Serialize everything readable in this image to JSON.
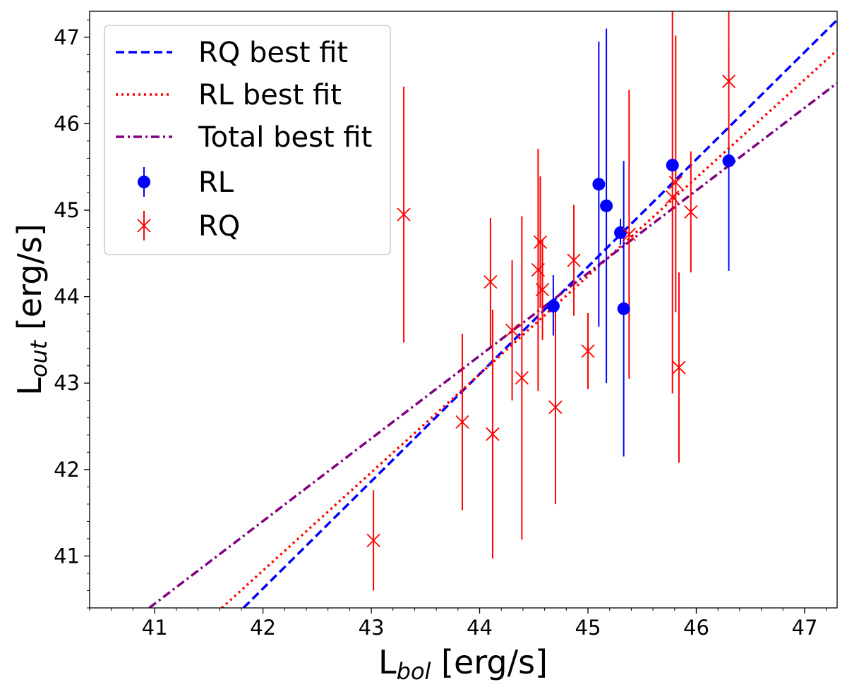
{
  "chart_data": {
    "type": "scatter",
    "xlabel": {
      "main": "L",
      "sub": "bol",
      "unit": " [erg/s]"
    },
    "ylabel": {
      "main": "L",
      "sub": "out",
      "unit": " [erg/s]"
    },
    "xlim": [
      40.4,
      47.3
    ],
    "ylim": [
      40.4,
      47.3
    ],
    "xticks": [
      41,
      42,
      43,
      44,
      45,
      46,
      47
    ],
    "yticks": [
      41,
      42,
      43,
      44,
      45,
      46,
      47
    ],
    "grid": false,
    "legend_position": "upper-left",
    "fits": [
      {
        "name": "RQ best fit",
        "color": "#0000ff",
        "dash": "dashed",
        "x": [
          41.82,
          47.3
        ],
        "y": [
          40.4,
          47.2
        ]
      },
      {
        "name": "RL best fit",
        "color": "#ff0000",
        "dash": "dotted",
        "x": [
          41.62,
          47.3
        ],
        "y": [
          40.4,
          46.85
        ]
      },
      {
        "name": "Total best fit",
        "color": "#800080",
        "dash": "dashdot",
        "x": [
          40.95,
          47.3
        ],
        "y": [
          40.4,
          46.47
        ]
      }
    ],
    "series": [
      {
        "name": "RL",
        "color": "#0000ff",
        "marker": "circle",
        "points": [
          {
            "x": 44.68,
            "y": 43.89,
            "ylo": 43.55,
            "yhi": 44.25
          },
          {
            "x": 45.1,
            "y": 45.3,
            "ylo": 43.65,
            "yhi": 46.95
          },
          {
            "x": 45.17,
            "y": 45.05,
            "ylo": 43.0,
            "yhi": 47.1
          },
          {
            "x": 45.3,
            "y": 44.74,
            "ylo": 44.6,
            "yhi": 44.9
          },
          {
            "x": 45.33,
            "y": 43.86,
            "ylo": 42.15,
            "yhi": 45.57
          },
          {
            "x": 45.78,
            "y": 45.52,
            "ylo": 45.4,
            "yhi": 45.6
          },
          {
            "x": 46.3,
            "y": 45.57,
            "ylo": 44.3,
            "yhi": 46.85
          }
        ]
      },
      {
        "name": "RQ",
        "color": "#ff0000",
        "marker": "x",
        "points": [
          {
            "x": 43.02,
            "y": 41.18,
            "ylo": 40.6,
            "yhi": 41.76
          },
          {
            "x": 43.3,
            "y": 44.95,
            "ylo": 43.47,
            "yhi": 46.43
          },
          {
            "x": 43.84,
            "y": 42.55,
            "ylo": 41.53,
            "yhi": 43.57
          },
          {
            "x": 44.1,
            "y": 44.17,
            "ylo": 43.43,
            "yhi": 44.91
          },
          {
            "x": 44.12,
            "y": 42.41,
            "ylo": 40.97,
            "yhi": 43.85
          },
          {
            "x": 44.3,
            "y": 43.61,
            "ylo": 42.8,
            "yhi": 44.42
          },
          {
            "x": 44.39,
            "y": 43.06,
            "ylo": 41.19,
            "yhi": 44.93
          },
          {
            "x": 44.54,
            "y": 44.31,
            "ylo": 42.91,
            "yhi": 45.71
          },
          {
            "x": 44.56,
            "y": 44.63,
            "ylo": 43.87,
            "yhi": 45.39
          },
          {
            "x": 44.58,
            "y": 44.08,
            "ylo": 43.5,
            "yhi": 44.66
          },
          {
            "x": 44.7,
            "y": 42.72,
            "ylo": 41.6,
            "yhi": 43.84
          },
          {
            "x": 44.87,
            "y": 44.42,
            "ylo": 43.78,
            "yhi": 45.06
          },
          {
            "x": 45.0,
            "y": 43.37,
            "ylo": 42.93,
            "yhi": 43.81
          },
          {
            "x": 45.38,
            "y": 44.72,
            "ylo": 43.05,
            "yhi": 46.39
          },
          {
            "x": 45.78,
            "y": 45.15,
            "ylo": 42.88,
            "yhi": 47.42
          },
          {
            "x": 45.81,
            "y": 45.32,
            "ylo": 43.82,
            "yhi": 47.02
          },
          {
            "x": 45.84,
            "y": 43.18,
            "ylo": 42.08,
            "yhi": 44.28
          },
          {
            "x": 45.95,
            "y": 44.98,
            "ylo": 44.28,
            "yhi": 45.68
          },
          {
            "x": 46.3,
            "y": 46.49,
            "ylo": 45.7,
            "yhi": 47.32
          }
        ]
      }
    ]
  }
}
